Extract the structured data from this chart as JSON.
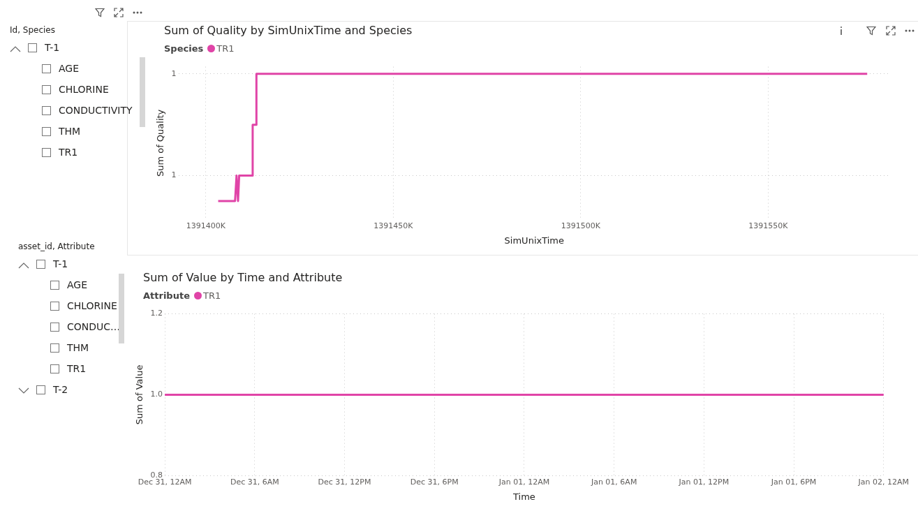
{
  "chart_data": [
    {
      "type": "other",
      "title": "Id, Species",
      "annotations": [
        "T-1",
        "AGE",
        "CHLORINE",
        "CONDUCTIVITY",
        "THM",
        "TR1"
      ]
    },
    {
      "type": "line",
      "title": "Sum of Quality by SimUnixTime and Species",
      "xlabel": "SimUnixTime",
      "ylabel": "Sum of Quality",
      "legend_title": "Species",
      "legend": "top left",
      "grid": true,
      "line_style": "solid",
      "x": [
        1391403300,
        1391407800,
        1391408200,
        1391408600,
        1391408900,
        1391412500,
        1391412500,
        1391413500,
        1391413500,
        1391576400
      ],
      "series": [
        {
          "name": "TR1",
          "color": "#e044a7",
          "values": [
            0.99875,
            0.99875,
            0.999,
            0.99875,
            0.999,
            0.999,
            0.9995,
            0.9995,
            1,
            1
          ]
        }
      ],
      "xlim": [
        1391392700,
        1391582500
      ],
      "xticks": [
        {
          "value": 1391400000,
          "label": "1391400K"
        },
        {
          "value": 1391450000,
          "label": "1391450K"
        },
        {
          "value": 1391500000,
          "label": "1391500K"
        },
        {
          "value": 1391550000,
          "label": "1391550K"
        }
      ],
      "ylim": [
        0.99857,
        1.00007
      ],
      "yticks": [
        {
          "value": 0.999,
          "label": "1"
        },
        {
          "value": 1,
          "label": "1"
        }
      ]
    },
    {
      "type": "other",
      "title": "asset_id, Attribute",
      "annotations": [
        "T-1",
        "AGE",
        "CHLORINE",
        "CONDUC…",
        "THM",
        "TR1",
        "T-2"
      ]
    },
    {
      "type": "line",
      "title": "Sum of Value by Time and Attribute",
      "xlabel": "Time",
      "ylabel": "Sum of Value",
      "legend_title": "Attribute",
      "legend": "top left",
      "grid": true,
      "line_style": "solid",
      "categories": [
        "Dec 31, 12AM",
        "Dec 31, 6AM",
        "Dec 31, 12PM",
        "Dec 31, 6PM",
        "Jan 01, 12AM",
        "Jan 01, 6AM",
        "Jan 01, 12PM",
        "Jan 01, 6PM",
        "Jan 02, 12AM"
      ],
      "series": [
        {
          "name": "TR1",
          "color": "#e044a7",
          "values": [
            1.0,
            1.0,
            1.0,
            1.0,
            1.0,
            1.0,
            1.0,
            1.0,
            1.0
          ]
        }
      ],
      "ylim": [
        0.8,
        1.2
      ],
      "yticks": [
        {
          "value": 0.8,
          "label": "0.8"
        },
        {
          "value": 1.0,
          "label": "1.0"
        },
        {
          "value": 1.2,
          "label": "1.2"
        }
      ]
    }
  ]
}
